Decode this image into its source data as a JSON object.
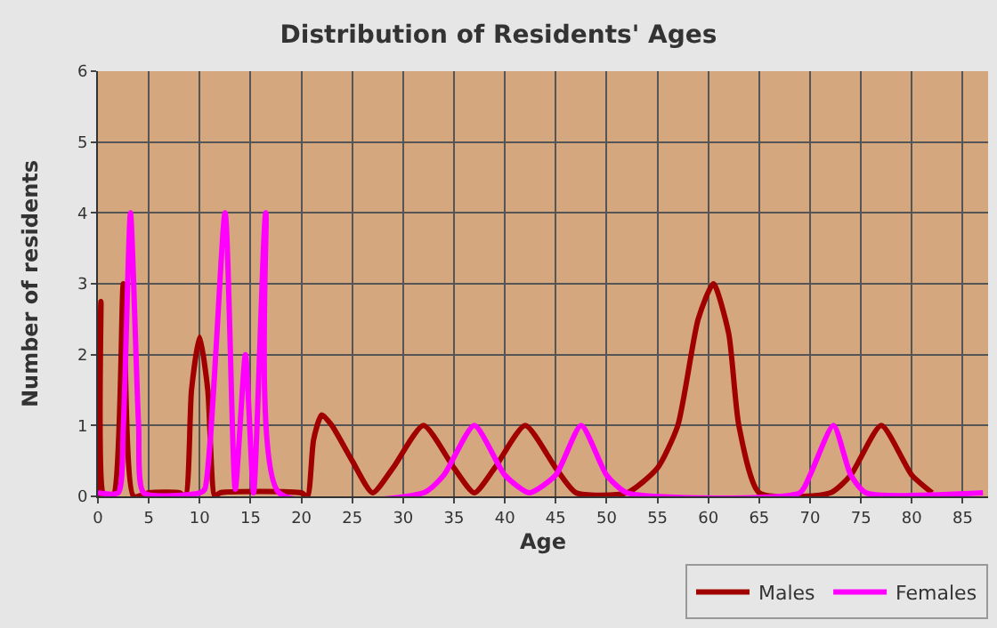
{
  "chart_data": {
    "type": "line",
    "title": "Distribution of Residents' Ages",
    "xlabel": "Age",
    "ylabel": "Number of residents",
    "xlim": [
      0,
      87.5
    ],
    "xticks": [
      0,
      5,
      10,
      15,
      20,
      25,
      30,
      35,
      40,
      45,
      50,
      55,
      60,
      65,
      70,
      75,
      80,
      85
    ],
    "ylim": [
      0,
      6
    ],
    "yticks": [
      0,
      1,
      2,
      3,
      4,
      5,
      6
    ],
    "grid": true,
    "legend": "bottom right",
    "series": [
      {
        "name": "Males",
        "color": "#a00000",
        "x": [
          0,
          0.3,
          0.6,
          1.5,
          2.5,
          3.5,
          5,
          8,
          8.6,
          9.2,
          10,
          10.8,
          11.5,
          12,
          20,
          20.6,
          21.2,
          22,
          23,
          25,
          27,
          29,
          32,
          35,
          37,
          39,
          42,
          45,
          47,
          52,
          55,
          57,
          59,
          60.5,
          62,
          63,
          65,
          72,
          74,
          77,
          80,
          82
        ],
        "values": [
          0,
          2.75,
          0,
          0,
          3,
          0,
          0.05,
          0.05,
          0,
          1.5,
          2.25,
          1.5,
          0,
          0.05,
          0.05,
          0,
          0.8,
          1.15,
          1.0,
          0.5,
          0.05,
          0.4,
          1.0,
          0.4,
          0.05,
          0.4,
          1.0,
          0.4,
          0.05,
          0.05,
          0.4,
          1.0,
          2.5,
          3.0,
          2.3,
          1.0,
          0.05,
          0.05,
          0.3,
          1.0,
          0.3,
          0.05
        ]
      },
      {
        "name": "Females",
        "color": "#ff00ff",
        "x": [
          0,
          2,
          2.5,
          3.2,
          4,
          4.5,
          10,
          10.5,
          12.5,
          13.5,
          14.5,
          15.3,
          16.5,
          17.8,
          32,
          34,
          37,
          40,
          42.4,
          45,
          47.5,
          50,
          52,
          69,
          70,
          72.3,
          74,
          75.5,
          87
        ],
        "values": [
          0.05,
          0.05,
          1,
          4,
          1,
          0.05,
          0.05,
          0.1,
          4,
          0.1,
          2,
          0.05,
          4,
          0.05,
          0.05,
          0.3,
          1.0,
          0.3,
          0.05,
          0.3,
          1.0,
          0.3,
          0.05,
          0.05,
          0.3,
          1.0,
          0.3,
          0.05,
          0.05
        ]
      }
    ]
  }
}
